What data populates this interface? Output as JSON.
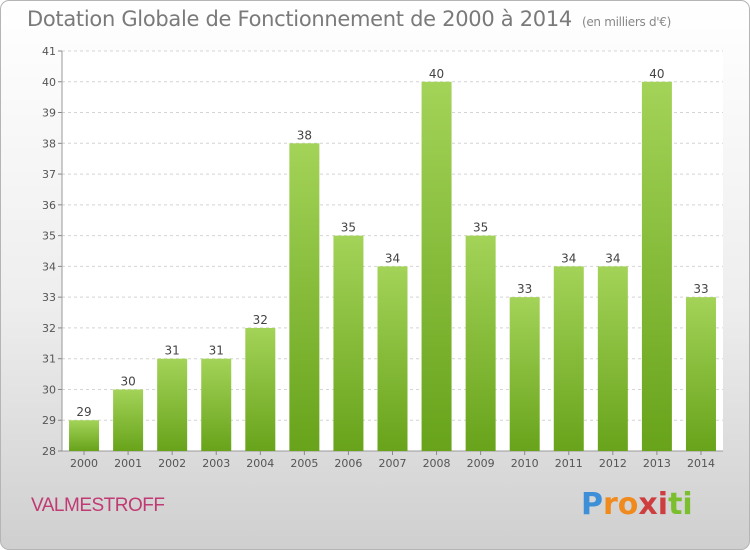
{
  "title": "Dotation Globale de Fonctionnement de 2000 à 2014",
  "subtitle": "(en milliers d'€)",
  "town": "VALMESTROFF",
  "logo": {
    "text": "Proxiti",
    "letters": [
      "P",
      "r",
      "o",
      "x",
      "i",
      "t",
      "i"
    ],
    "colors": [
      "#3d8fd8",
      "#f08a1c",
      "#f08a1c",
      "#cf3e3e",
      "#cf3e3e",
      "#7bbf2e",
      "#7bbf2e"
    ]
  },
  "colors": {
    "bar_light": "#a3d358",
    "bar_dark": "#68a31b",
    "grid": "#d4d4d4",
    "axis_text": "#555555"
  },
  "chart_data": {
    "type": "bar",
    "title": "Dotation Globale de Fonctionnement de 2000 à 2014",
    "xlabel": "",
    "ylabel": "",
    "categories": [
      "2000",
      "2001",
      "2002",
      "2003",
      "2004",
      "2005",
      "2006",
      "2007",
      "2008",
      "2009",
      "2010",
      "2011",
      "2012",
      "2013",
      "2014"
    ],
    "values": [
      29,
      30,
      31,
      31,
      32,
      38,
      35,
      34,
      40,
      35,
      33,
      34,
      34,
      40,
      33
    ],
    "ylim": [
      28,
      41
    ],
    "yticks": [
      "28",
      "29",
      "30",
      "31",
      "32",
      "33",
      "34",
      "35",
      "36",
      "37",
      "38",
      "39",
      "40",
      "41"
    ],
    "grid": true
  }
}
